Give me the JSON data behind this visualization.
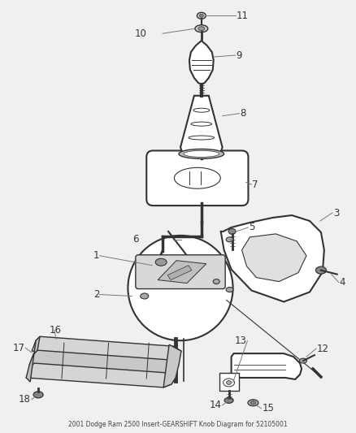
{
  "title": "2001 Dodge Ram 2500 Insert-GEARSHIFT Knob Diagram for 52105001",
  "background_color": "#f0f0f0",
  "line_color": "#333333",
  "label_color": "#333333",
  "fig_width": 4.39,
  "fig_height": 5.33,
  "dpi": 100
}
